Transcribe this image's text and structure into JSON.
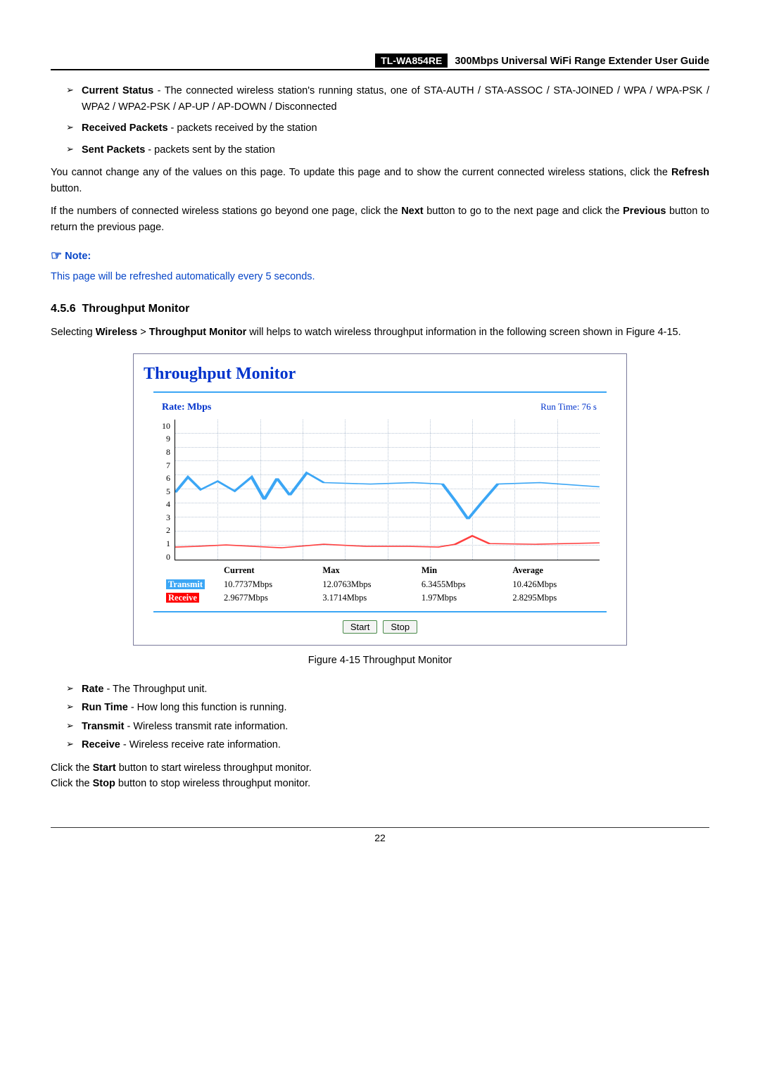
{
  "header": {
    "model": "TL-WA854RE",
    "title": "300Mbps Universal WiFi Range Extender User Guide"
  },
  "bullets_top": [
    {
      "label": "Current Status",
      "text": " - The connected wireless station's running status, one of STA-AUTH / STA-ASSOC / STA-JOINED / WPA / WPA-PSK / WPA2 / WPA2-PSK / AP-UP / AP-DOWN / Disconnected"
    },
    {
      "label": "Received Packets",
      "text": " - packets received by the station"
    },
    {
      "label": "Sent Packets",
      "text": " - packets sent by the station"
    }
  ],
  "para1": "You cannot change any of the values on this page. To update this page and to show the current connected wireless stations, click the ",
  "para1_bold": "Refresh",
  "para1_tail": " button.",
  "para2_a": "If the numbers of connected wireless stations go beyond one page, click the ",
  "para2_b": "Next",
  "para2_c": " button to go to the next page and click the ",
  "para2_d": "Previous",
  "para2_e": " button to return the previous page.",
  "note_label": "Note:",
  "note_body": "This page will be refreshed automatically every 5 seconds.",
  "section": {
    "num": "4.5.6",
    "title": "Throughput Monitor"
  },
  "section_para_a": "Selecting ",
  "section_para_b": "Wireless",
  "section_para_c": " > ",
  "section_para_d": "Throughput Monitor",
  "section_para_e": " will helps to watch wireless throughput information in the following screen shown in Figure 4-15.",
  "chart": {
    "title": "Throughput Monitor",
    "rate_label": "Rate: Mbps",
    "runtime": "Run Time: 76 s",
    "ymax": 10,
    "yticks": [
      "10",
      "9",
      "8",
      "7",
      "6",
      "5",
      "4",
      "3",
      "2",
      "1",
      "0"
    ],
    "tx_color": "#3ba6f5",
    "rx_color": "#ff4040",
    "grid_color": "#b8c5d5",
    "tx_points": [
      0,
      4.8,
      3,
      5.9,
      6,
      5.0,
      10,
      5.6,
      14,
      4.9,
      18,
      5.9,
      21,
      4.3,
      24,
      5.8,
      27,
      4.6,
      31,
      6.2,
      35,
      5.5,
      46,
      5.4,
      56,
      5.5,
      63,
      5.4,
      66,
      4.2,
      69,
      2.9,
      72,
      4.0,
      76,
      5.4,
      86,
      5.5,
      100,
      5.2
    ],
    "rx_points": [
      0,
      0.9,
      5,
      0.95,
      12,
      1.05,
      25,
      0.85,
      35,
      1.1,
      45,
      0.95,
      55,
      0.95,
      62,
      0.9,
      66,
      1.1,
      70,
      1.7,
      74,
      1.15,
      85,
      1.1,
      100,
      1.2
    ],
    "stats": {
      "headers": [
        "",
        "Current",
        "Max",
        "Min",
        "Average"
      ],
      "rows": [
        {
          "tag": "Transmit",
          "cls": "tag-tx",
          "cells": [
            "10.7737Mbps",
            "12.0763Mbps",
            "6.3455Mbps",
            "10.426Mbps"
          ]
        },
        {
          "tag": "Receive",
          "cls": "tag-rx",
          "cells": [
            "2.9677Mbps",
            "3.1714Mbps",
            "1.97Mbps",
            "2.8295Mbps"
          ]
        }
      ]
    },
    "buttons": [
      "Start",
      "Stop"
    ]
  },
  "fig_caption": "Figure 4-15 Throughput Monitor",
  "bullets_bottom": [
    {
      "label": "Rate",
      "text": " - The Throughput unit."
    },
    {
      "label": "Run Time",
      "text": " - How long this function is running."
    },
    {
      "label": "Transmit",
      "text": " - Wireless transmit rate information."
    },
    {
      "label": "Receive",
      "text": " - Wireless receive rate information."
    }
  ],
  "tail1_a": "Click the ",
  "tail1_b": "Start",
  "tail1_c": " button to start wireless throughput monitor.",
  "tail2_a": "Click the ",
  "tail2_b": "Stop",
  "tail2_c": " button to stop wireless throughput monitor.",
  "page_num": "22"
}
